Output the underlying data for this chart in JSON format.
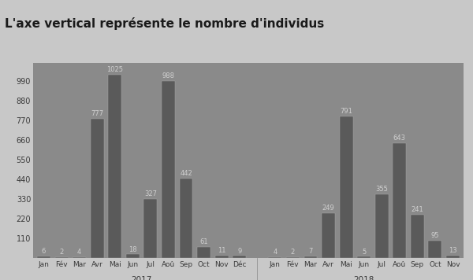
{
  "title": "L'axe vertical représente le nombre d'individus",
  "categories_2017": [
    "Jan",
    "Fév",
    "Mar",
    "Avr",
    "Mai",
    "Jun",
    "Jul",
    "Aoû",
    "Sep",
    "Oct",
    "Nov",
    "Déc"
  ],
  "values_2017": [
    6,
    2,
    4,
    777,
    1025,
    18,
    327,
    988,
    442,
    61,
    11,
    9
  ],
  "categories_2018": [
    "Jan",
    "Fév",
    "Mar",
    "Avr",
    "Mai",
    "Jun",
    "Jul",
    "Aoû",
    "Sep",
    "Oct",
    "Nov"
  ],
  "values_2018": [
    4,
    2,
    7,
    249,
    791,
    5,
    355,
    643,
    241,
    95,
    13
  ],
  "bar_color": "#5a5a5a",
  "background_color": "#8a8a8a",
  "title_bg_color": "#c8c8c8",
  "header_bg_color": "#5f5f5f",
  "axis_label_color": "#3a3a3a",
  "bar_label_color": "#d0d0d0",
  "tick_color": "#5a5a5a",
  "ylim": [
    0,
    1090
  ],
  "yticks": [
    110,
    220,
    330,
    440,
    550,
    660,
    770,
    880,
    990
  ],
  "title_fontsize": 11,
  "label_fontsize": 7
}
